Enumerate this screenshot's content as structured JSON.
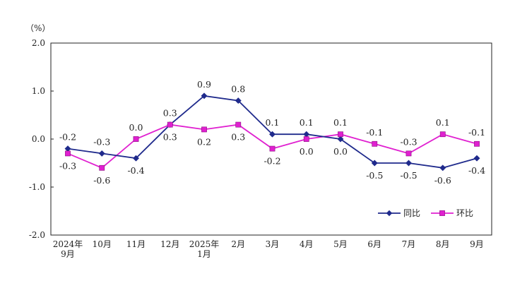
{
  "chart_data": {
    "type": "line",
    "unit_label": "（%）",
    "categories": [
      [
        "2024年",
        "9月"
      ],
      [
        "10月"
      ],
      [
        "11月"
      ],
      [
        "12月"
      ],
      [
        "2025年",
        "1月"
      ],
      [
        "2月"
      ],
      [
        "3月"
      ],
      [
        "4月"
      ],
      [
        "5月"
      ],
      [
        "6月"
      ],
      [
        "7月"
      ],
      [
        "8月"
      ],
      [
        "9月"
      ]
    ],
    "yticks": [
      "-2.0",
      "-1.0",
      "0.0",
      "1.0",
      "2.0"
    ],
    "ylim": [
      -2.0,
      2.0
    ],
    "grid": false,
    "legend_position": "bottom-right",
    "series": [
      {
        "name": "同比",
        "color": "#1f2a8c",
        "marker": "diamond",
        "values": [
          -0.2,
          -0.3,
          -0.4,
          0.3,
          0.9,
          0.8,
          0.1,
          0.1,
          0.0,
          -0.5,
          -0.5,
          -0.6,
          -0.4
        ],
        "labels": [
          "-0.2",
          "-0.3",
          "-0.4",
          "0.3",
          "0.9",
          "0.8",
          "0.1",
          "0.1",
          "0.0",
          "-0.5",
          "-0.5",
          "-0.6",
          "-0.4"
        ],
        "label_side": [
          "above",
          "above",
          "below",
          "above",
          "above",
          "above",
          "above",
          "above",
          "below",
          "below",
          "below",
          "below",
          "below"
        ]
      },
      {
        "name": "环比",
        "color": "#e020d0",
        "marker": "square",
        "values": [
          -0.3,
          -0.6,
          0.0,
          0.3,
          0.2,
          0.3,
          -0.2,
          0.0,
          0.1,
          -0.1,
          -0.3,
          0.1,
          -0.1
        ],
        "labels": [
          "-0.3",
          "-0.6",
          "0.0",
          "0.3",
          "0.2",
          "0.3",
          "-0.2",
          "0.0",
          "0.1",
          "-0.1",
          "-0.3",
          "0.1",
          "-0.1"
        ],
        "label_side": [
          "below",
          "below",
          "above",
          "below",
          "below",
          "below",
          "below",
          "below",
          "above",
          "above",
          "above",
          "above",
          "above"
        ]
      }
    ]
  }
}
